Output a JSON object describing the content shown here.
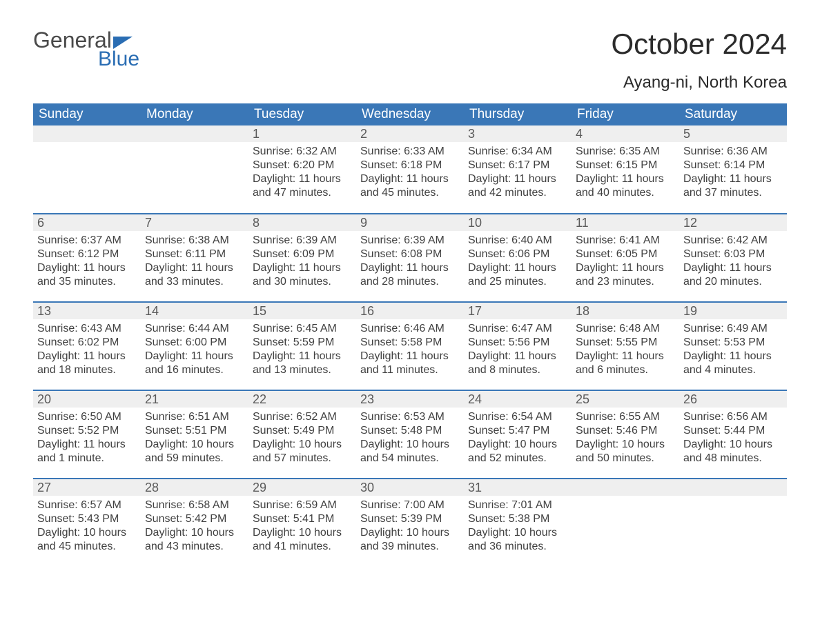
{
  "logo": {
    "text1": "General",
    "text2": "Blue",
    "brand_color": "#2a6db3"
  },
  "header": {
    "month_title": "October 2024",
    "location": "Ayang-ni, North Korea"
  },
  "calendar": {
    "type": "calendar-grid",
    "columns": 7,
    "header_bg": "#3a77b7",
    "header_fg": "#ffffff",
    "row_separator_color": "#3a77b7",
    "daynum_bg": "#efefef",
    "text_color": "#404040",
    "day_headers": [
      "Sunday",
      "Monday",
      "Tuesday",
      "Wednesday",
      "Thursday",
      "Friday",
      "Saturday"
    ],
    "weeks": [
      [
        {
          "n": "",
          "lines": []
        },
        {
          "n": "",
          "lines": []
        },
        {
          "n": "1",
          "lines": [
            "Sunrise: 6:32 AM",
            "Sunset: 6:20 PM",
            "Daylight: 11 hours",
            "and 47 minutes."
          ]
        },
        {
          "n": "2",
          "lines": [
            "Sunrise: 6:33 AM",
            "Sunset: 6:18 PM",
            "Daylight: 11 hours",
            "and 45 minutes."
          ]
        },
        {
          "n": "3",
          "lines": [
            "Sunrise: 6:34 AM",
            "Sunset: 6:17 PM",
            "Daylight: 11 hours",
            "and 42 minutes."
          ]
        },
        {
          "n": "4",
          "lines": [
            "Sunrise: 6:35 AM",
            "Sunset: 6:15 PM",
            "Daylight: 11 hours",
            "and 40 minutes."
          ]
        },
        {
          "n": "5",
          "lines": [
            "Sunrise: 6:36 AM",
            "Sunset: 6:14 PM",
            "Daylight: 11 hours",
            "and 37 minutes."
          ]
        }
      ],
      [
        {
          "n": "6",
          "lines": [
            "Sunrise: 6:37 AM",
            "Sunset: 6:12 PM",
            "Daylight: 11 hours",
            "and 35 minutes."
          ]
        },
        {
          "n": "7",
          "lines": [
            "Sunrise: 6:38 AM",
            "Sunset: 6:11 PM",
            "Daylight: 11 hours",
            "and 33 minutes."
          ]
        },
        {
          "n": "8",
          "lines": [
            "Sunrise: 6:39 AM",
            "Sunset: 6:09 PM",
            "Daylight: 11 hours",
            "and 30 minutes."
          ]
        },
        {
          "n": "9",
          "lines": [
            "Sunrise: 6:39 AM",
            "Sunset: 6:08 PM",
            "Daylight: 11 hours",
            "and 28 minutes."
          ]
        },
        {
          "n": "10",
          "lines": [
            "Sunrise: 6:40 AM",
            "Sunset: 6:06 PM",
            "Daylight: 11 hours",
            "and 25 minutes."
          ]
        },
        {
          "n": "11",
          "lines": [
            "Sunrise: 6:41 AM",
            "Sunset: 6:05 PM",
            "Daylight: 11 hours",
            "and 23 minutes."
          ]
        },
        {
          "n": "12",
          "lines": [
            "Sunrise: 6:42 AM",
            "Sunset: 6:03 PM",
            "Daylight: 11 hours",
            "and 20 minutes."
          ]
        }
      ],
      [
        {
          "n": "13",
          "lines": [
            "Sunrise: 6:43 AM",
            "Sunset: 6:02 PM",
            "Daylight: 11 hours",
            "and 18 minutes."
          ]
        },
        {
          "n": "14",
          "lines": [
            "Sunrise: 6:44 AM",
            "Sunset: 6:00 PM",
            "Daylight: 11 hours",
            "and 16 minutes."
          ]
        },
        {
          "n": "15",
          "lines": [
            "Sunrise: 6:45 AM",
            "Sunset: 5:59 PM",
            "Daylight: 11 hours",
            "and 13 minutes."
          ]
        },
        {
          "n": "16",
          "lines": [
            "Sunrise: 6:46 AM",
            "Sunset: 5:58 PM",
            "Daylight: 11 hours",
            "and 11 minutes."
          ]
        },
        {
          "n": "17",
          "lines": [
            "Sunrise: 6:47 AM",
            "Sunset: 5:56 PM",
            "Daylight: 11 hours",
            "and 8 minutes."
          ]
        },
        {
          "n": "18",
          "lines": [
            "Sunrise: 6:48 AM",
            "Sunset: 5:55 PM",
            "Daylight: 11 hours",
            "and 6 minutes."
          ]
        },
        {
          "n": "19",
          "lines": [
            "Sunrise: 6:49 AM",
            "Sunset: 5:53 PM",
            "Daylight: 11 hours",
            "and 4 minutes."
          ]
        }
      ],
      [
        {
          "n": "20",
          "lines": [
            "Sunrise: 6:50 AM",
            "Sunset: 5:52 PM",
            "Daylight: 11 hours",
            "and 1 minute."
          ]
        },
        {
          "n": "21",
          "lines": [
            "Sunrise: 6:51 AM",
            "Sunset: 5:51 PM",
            "Daylight: 10 hours",
            "and 59 minutes."
          ]
        },
        {
          "n": "22",
          "lines": [
            "Sunrise: 6:52 AM",
            "Sunset: 5:49 PM",
            "Daylight: 10 hours",
            "and 57 minutes."
          ]
        },
        {
          "n": "23",
          "lines": [
            "Sunrise: 6:53 AM",
            "Sunset: 5:48 PM",
            "Daylight: 10 hours",
            "and 54 minutes."
          ]
        },
        {
          "n": "24",
          "lines": [
            "Sunrise: 6:54 AM",
            "Sunset: 5:47 PM",
            "Daylight: 10 hours",
            "and 52 minutes."
          ]
        },
        {
          "n": "25",
          "lines": [
            "Sunrise: 6:55 AM",
            "Sunset: 5:46 PM",
            "Daylight: 10 hours",
            "and 50 minutes."
          ]
        },
        {
          "n": "26",
          "lines": [
            "Sunrise: 6:56 AM",
            "Sunset: 5:44 PM",
            "Daylight: 10 hours",
            "and 48 minutes."
          ]
        }
      ],
      [
        {
          "n": "27",
          "lines": [
            "Sunrise: 6:57 AM",
            "Sunset: 5:43 PM",
            "Daylight: 10 hours",
            "and 45 minutes."
          ]
        },
        {
          "n": "28",
          "lines": [
            "Sunrise: 6:58 AM",
            "Sunset: 5:42 PM",
            "Daylight: 10 hours",
            "and 43 minutes."
          ]
        },
        {
          "n": "29",
          "lines": [
            "Sunrise: 6:59 AM",
            "Sunset: 5:41 PM",
            "Daylight: 10 hours",
            "and 41 minutes."
          ]
        },
        {
          "n": "30",
          "lines": [
            "Sunrise: 7:00 AM",
            "Sunset: 5:39 PM",
            "Daylight: 10 hours",
            "and 39 minutes."
          ]
        },
        {
          "n": "31",
          "lines": [
            "Sunrise: 7:01 AM",
            "Sunset: 5:38 PM",
            "Daylight: 10 hours",
            "and 36 minutes."
          ]
        },
        {
          "n": "",
          "lines": []
        },
        {
          "n": "",
          "lines": []
        }
      ]
    ]
  }
}
